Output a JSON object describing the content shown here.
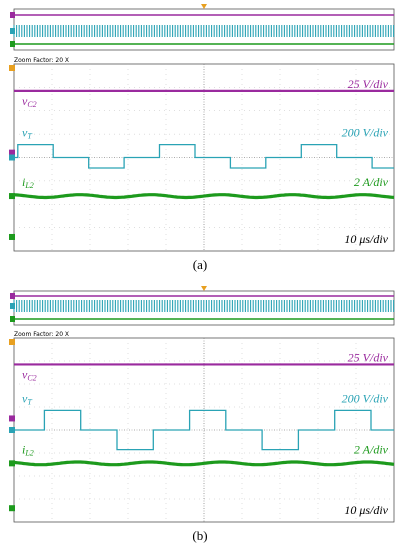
{
  "colors": {
    "vc2": "#9a2a9e",
    "vT": "#2aa3b5",
    "iL2": "#1d9a1d",
    "trigger": "#e8a020",
    "grid": "#bfbfbf",
    "frame": "#555555"
  },
  "panels": [
    {
      "caption": "(a)",
      "zoom_label": "Zoom Factor: 20 X",
      "labels": {
        "vc2_name": "vC2",
        "vc2_scale": "25 V/div",
        "vT_name": "vT",
        "vT_scale": "200 V/div",
        "iL2_name": "iL2",
        "iL2_scale": "2 A/div",
        "time_scale": "10 μs/div"
      }
    },
    {
      "caption": "(b)",
      "zoom_label": "Zoom Factor: 20 X",
      "labels": {
        "vc2_name": "vC2",
        "vc2_scale": "25 V/div",
        "vT_name": "vT",
        "vT_scale": "200 V/div",
        "iL2_name": "iL2",
        "iL2_scale": "2 A/div",
        "time_scale": "10 μs/div"
      }
    }
  ],
  "chart_data": [
    {
      "type": "line",
      "x_unit": "μs",
      "x_per_div": 10,
      "xlim": [
        -50,
        50
      ],
      "series": [
        {
          "name": "vC2",
          "shape": "dc",
          "scale": "25 V/div",
          "level_div": 2.85
        },
        {
          "name": "vT",
          "shape": "three-level-square",
          "scale": "200 V/div",
          "period_us": 37.3,
          "phase_us": -49,
          "high_div": 0.55,
          "zero_div": 0,
          "low_div": -0.45
        },
        {
          "name": "iL2",
          "shape": "ripple",
          "scale": "2 A/div",
          "level_div": -1.65,
          "ripple_div": 0.06,
          "period_us": 18.6
        }
      ]
    },
    {
      "type": "line",
      "x_unit": "μs",
      "x_per_div": 10,
      "xlim": [
        -50,
        50
      ],
      "series": [
        {
          "name": "vC2",
          "shape": "dc",
          "scale": "25 V/div",
          "level_div": 2.85
        },
        {
          "name": "vT",
          "shape": "three-level-square",
          "scale": "200 V/div",
          "period_us": 38.2,
          "phase_us": -42,
          "high_div": 0.85,
          "zero_div": 0,
          "low_div": -0.85
        },
        {
          "name": "iL2",
          "shape": "ripple",
          "scale": "2 A/div",
          "level_div": -1.45,
          "ripple_div": 0.06,
          "period_us": 19.1
        }
      ]
    }
  ]
}
